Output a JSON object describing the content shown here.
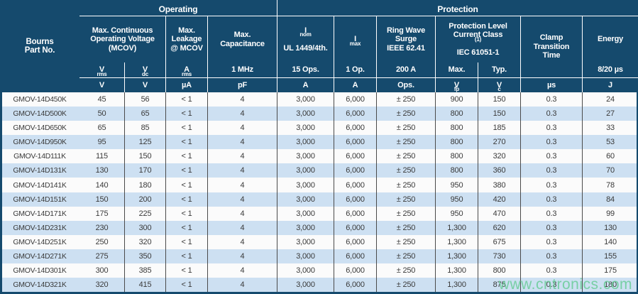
{
  "colors": {
    "header_bg": "#154a6d",
    "row_alt_bg": "#cde0f2",
    "row_bg": "#fbfbfb",
    "grid_line": "#4a4a4a",
    "watermark_green": "#63cc92"
  },
  "header": {
    "part_label": "Bourns\nPart No.",
    "group_operating": "Operating",
    "group_protection": "Protection",
    "col_mcov": "Max. Continuous\nOperating Voltage\n(MCOV)",
    "col_leakage": "Max.\nLeakage\n@ MCOV",
    "col_capacitance": "Max.\nCapacitance",
    "col_inom": "I_{nom}\nUL 1449/4th.",
    "col_imax": "I_{max}",
    "col_ringwave": "Ring Wave\nSurge\nIEEE 62.41",
    "col_protection_level": "Protection Level\nCurrent Class ^{(1)}\nIEC 61051-1",
    "col_clamp": "Clamp\nTransition\nTime",
    "col_energy": "Energy",
    "subs": [
      "V_{rms}",
      "V_{dc}",
      "A_{rms}",
      "1 MHz",
      "15 Ops.",
      "1 Op.",
      "200 A",
      "Max.",
      "Typ.",
      "8/20 µs"
    ],
    "units": [
      "V",
      "V",
      "µA",
      "pF",
      "A",
      "A",
      "Ops.",
      "V_{fp}",
      "V_{c}",
      "µs",
      "J"
    ]
  },
  "rows": [
    {
      "part": "GMOV-14D450K",
      "values": [
        "45",
        "56",
        "< 1",
        "4",
        "3,000",
        "6,000",
        "± 250",
        "900",
        "150",
        "0.3",
        "24"
      ]
    },
    {
      "part": "GMOV-14D500K",
      "values": [
        "50",
        "65",
        "< 1",
        "4",
        "3,000",
        "6,000",
        "± 250",
        "800",
        "150",
        "0.3",
        "27"
      ]
    },
    {
      "part": "GMOV-14D650K",
      "values": [
        "65",
        "85",
        "< 1",
        "4",
        "3,000",
        "6,000",
        "± 250",
        "800",
        "185",
        "0.3",
        "33"
      ]
    },
    {
      "part": "GMOV-14D950K",
      "values": [
        "95",
        "125",
        "< 1",
        "4",
        "3,000",
        "6,000",
        "± 250",
        "800",
        "270",
        "0.3",
        "53"
      ]
    },
    {
      "part": "GMOV-14D111K",
      "values": [
        "115",
        "150",
        "< 1",
        "4",
        "3,000",
        "6,000",
        "± 250",
        "800",
        "320",
        "0.3",
        "60"
      ]
    },
    {
      "part": "GMOV-14D131K",
      "values": [
        "130",
        "170",
        "< 1",
        "4",
        "3,000",
        "6,000",
        "± 250",
        "800",
        "360",
        "0.3",
        "70"
      ]
    },
    {
      "part": "GMOV-14D141K",
      "values": [
        "140",
        "180",
        "< 1",
        "4",
        "3,000",
        "6,000",
        "± 250",
        "950",
        "380",
        "0.3",
        "78"
      ]
    },
    {
      "part": "GMOV-14D151K",
      "values": [
        "150",
        "200",
        "< 1",
        "4",
        "3,000",
        "6,000",
        "± 250",
        "950",
        "420",
        "0.3",
        "84"
      ]
    },
    {
      "part": "GMOV-14D171K",
      "values": [
        "175",
        "225",
        "< 1",
        "4",
        "3,000",
        "6,000",
        "± 250",
        "950",
        "470",
        "0.3",
        "99"
      ]
    },
    {
      "part": "GMOV-14D231K",
      "values": [
        "230",
        "300",
        "< 1",
        "4",
        "3,000",
        "6,000",
        "± 250",
        "1,300",
        "620",
        "0.3",
        "130"
      ]
    },
    {
      "part": "GMOV-14D251K",
      "values": [
        "250",
        "320",
        "< 1",
        "4",
        "3,000",
        "6,000",
        "± 250",
        "1,300",
        "675",
        "0.3",
        "140"
      ]
    },
    {
      "part": "GMOV-14D271K",
      "values": [
        "275",
        "350",
        "< 1",
        "4",
        "3,000",
        "6,000",
        "± 250",
        "1,300",
        "730",
        "0.3",
        "155"
      ]
    },
    {
      "part": "GMOV-14D301K",
      "values": [
        "300",
        "385",
        "< 1",
        "4",
        "3,000",
        "6,000",
        "± 250",
        "1,300",
        "800",
        "0.3",
        "175"
      ]
    },
    {
      "part": "GMOV-14D321K",
      "values": [
        "320",
        "415",
        "< 1",
        "4",
        "3,000",
        "6,000",
        "± 250",
        "1,300",
        "875",
        "0.3",
        "180"
      ]
    }
  ],
  "watermark": "www.cntronics.com"
}
